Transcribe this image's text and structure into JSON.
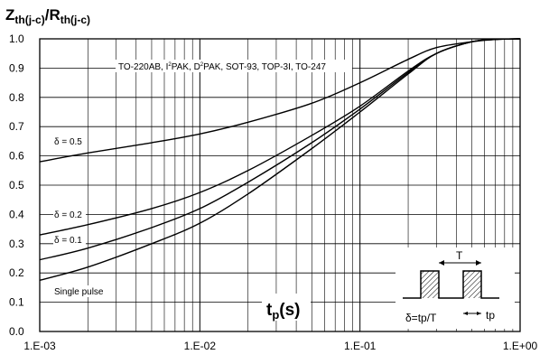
{
  "chart_data": {
    "type": "line",
    "title": {
      "main": "Z",
      "main_sub": "th(j-c)",
      "divider": "/R",
      "divider_sub": "th(j-c)"
    },
    "xlabel": {
      "main": "t",
      "sub": "p",
      "unit": "(s)"
    },
    "x_scale": "log",
    "xlim": [
      0.001,
      1.0
    ],
    "ylim": [
      0.0,
      1.0
    ],
    "grid": true,
    "x_tick_labels": [
      "1.E-03",
      "1.E-02",
      "1.E-01",
      "1.E+00"
    ],
    "y_tick_labels": [
      "0.0",
      "0.1",
      "0.2",
      "0.3",
      "0.4",
      "0.5",
      "0.6",
      "0.7",
      "0.8",
      "0.9",
      "1.0"
    ],
    "package_note": {
      "prefix": "TO-220AB, I",
      "s1": "2",
      "mid1": "PAK, D",
      "s2": "2",
      "suffix": "PAK, SOT-93, TOP-3I, TO-247"
    },
    "series": [
      {
        "name": "δ = 0.5",
        "x": [
          0.001,
          0.002,
          0.005,
          0.01,
          0.02,
          0.05,
          0.1,
          0.2,
          0.3,
          0.5,
          0.7,
          1.0
        ],
        "y": [
          0.58,
          0.61,
          0.645,
          0.675,
          0.715,
          0.78,
          0.85,
          0.93,
          0.97,
          0.99,
          0.998,
          1.0
        ]
      },
      {
        "name": "δ = 0.2",
        "x": [
          0.001,
          0.002,
          0.005,
          0.01,
          0.02,
          0.05,
          0.1,
          0.2,
          0.3,
          0.5,
          0.7,
          1.0
        ],
        "y": [
          0.33,
          0.365,
          0.42,
          0.475,
          0.55,
          0.67,
          0.77,
          0.89,
          0.95,
          0.99,
          0.998,
          1.0
        ]
      },
      {
        "name": "δ = 0.1",
        "x": [
          0.001,
          0.002,
          0.005,
          0.01,
          0.02,
          0.05,
          0.1,
          0.2,
          0.3,
          0.5,
          0.7,
          1.0
        ],
        "y": [
          0.245,
          0.285,
          0.355,
          0.42,
          0.51,
          0.645,
          0.76,
          0.885,
          0.95,
          0.99,
          0.998,
          1.0
        ]
      },
      {
        "name": "Single pulse",
        "x": [
          0.001,
          0.002,
          0.005,
          0.01,
          0.02,
          0.05,
          0.1,
          0.2,
          0.3,
          0.5,
          0.7,
          1.0
        ],
        "y": [
          0.175,
          0.22,
          0.3,
          0.37,
          0.47,
          0.625,
          0.75,
          0.88,
          0.95,
          0.99,
          0.998,
          1.0
        ]
      }
    ],
    "inset": {
      "period_label": "T",
      "duty_formula": "δ=tp/T",
      "pulse_label": "tp"
    }
  }
}
